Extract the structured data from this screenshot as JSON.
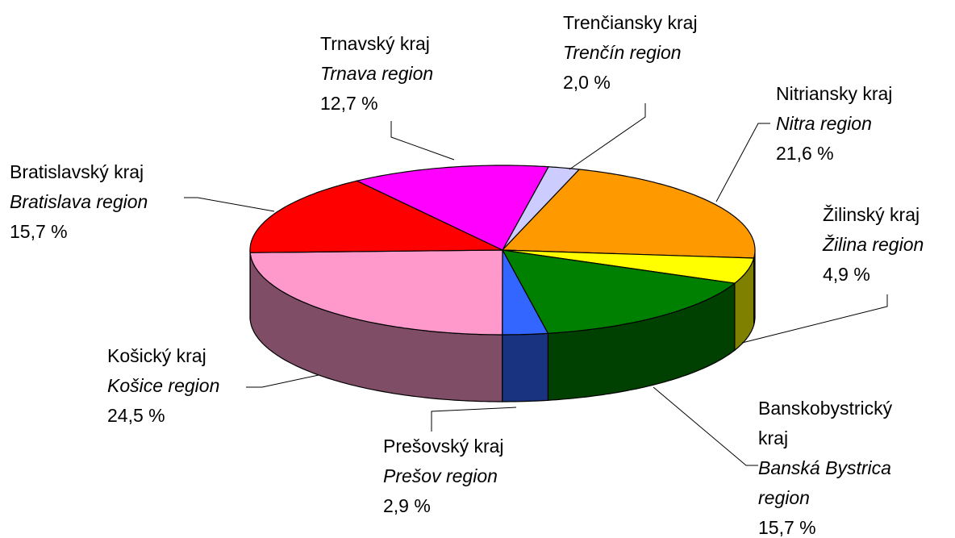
{
  "chart_data": {
    "type": "pie3d",
    "categories": [
      "Trenčiansky kraj",
      "Nitriansky kraj",
      "Žilinský kraj",
      "Banskobystrický kraj",
      "Prešovský kraj",
      "Košický kraj",
      "Bratislavský kraj",
      "Trnavský kraj"
    ],
    "category_translations": [
      "Trenčín region",
      "Nitra region",
      "Žilina region",
      "Banská Bystrica region",
      "Prešov region",
      "Košice region",
      "Bratislava region",
      "Trnava region"
    ],
    "values": [
      2.0,
      21.6,
      4.9,
      15.7,
      2.9,
      24.5,
      15.7,
      12.7
    ],
    "value_labels": [
      "2,0 %",
      "21,6 %",
      "4,9 %",
      "15,7 %",
      "2,9 %",
      "24,5 %",
      "15,7 %",
      "12,7 %"
    ],
    "colors": [
      "#ccccff",
      "#ff9900",
      "#ffff00",
      "#008000",
      "#3366ff",
      "#ff99cc",
      "#ff0000",
      "#ff00ff"
    ]
  }
}
